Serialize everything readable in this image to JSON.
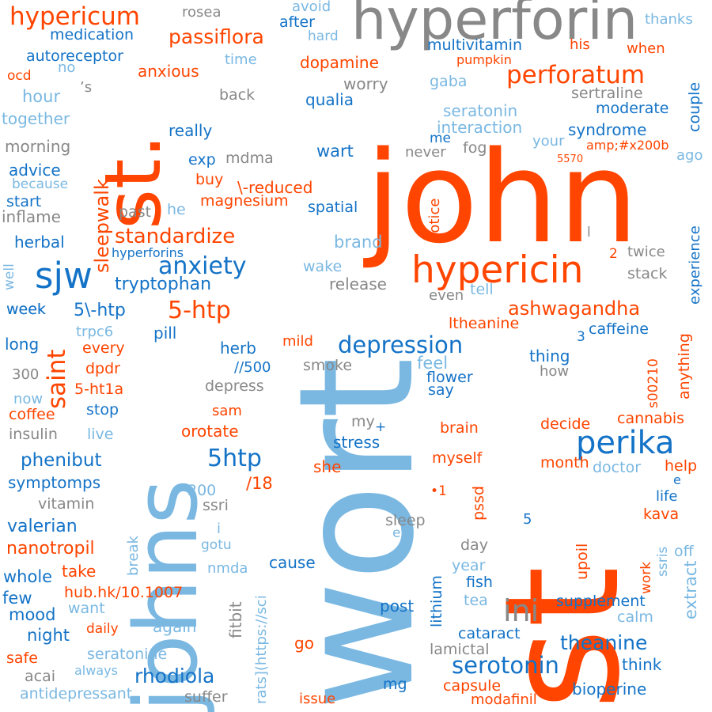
{
  "palette": {
    "orange": "#ff4500",
    "light_blue": "#7ab8e2",
    "gray": "#888888",
    "blue": "#1473c7"
  },
  "words": [
    {
      "text": "wort",
      "color": "light_blue",
      "orientation": "vertical"
    },
    {
      "text": "st",
      "color": "orange",
      "orientation": "vertical"
    },
    {
      "text": "john",
      "color": "orange",
      "orientation": "horizontal"
    },
    {
      "text": "johns",
      "color": "light_blue",
      "orientation": "vertical"
    },
    {
      "text": "st.",
      "color": "orange",
      "orientation": "vertical"
    },
    {
      "text": "hyperforin",
      "color": "gray",
      "orientation": "horizontal"
    },
    {
      "text": "hypericin",
      "color": "orange",
      "orientation": "horizontal"
    },
    {
      "text": "sjw",
      "color": "blue",
      "orientation": "horizontal"
    },
    {
      "text": "perika",
      "color": "blue",
      "orientation": "horizontal"
    },
    {
      "text": "ini",
      "color": "gray",
      "orientation": "horizontal"
    },
    {
      "text": "hypericum",
      "color": "orange",
      "orientation": "horizontal"
    },
    {
      "text": "perforatum",
      "color": "orange",
      "orientation": "horizontal"
    },
    {
      "text": "saint",
      "color": "orange",
      "orientation": "vertical"
    },
    {
      "text": "5-htp",
      "color": "orange",
      "orientation": "horizontal"
    },
    {
      "text": "5htp",
      "color": "blue",
      "orientation": "horizontal"
    },
    {
      "text": "anxiety",
      "color": "blue",
      "orientation": "horizontal"
    },
    {
      "text": "depression",
      "color": "blue",
      "orientation": "horizontal"
    },
    {
      "text": "serotonin",
      "color": "blue",
      "orientation": "horizontal"
    },
    {
      "text": "standardize",
      "color": "orange",
      "orientation": "horizontal"
    },
    {
      "text": "ashwagandha",
      "color": "orange",
      "orientation": "horizontal"
    },
    {
      "text": "rhodiola",
      "color": "blue",
      "orientation": "horizontal"
    },
    {
      "text": "theanine",
      "color": "blue",
      "orientation": "horizontal"
    },
    {
      "text": "passiflora",
      "color": "orange",
      "orientation": "horizontal"
    },
    {
      "text": "sleepwalk",
      "color": "orange",
      "orientation": "vertical"
    },
    {
      "text": "tryptophan",
      "color": "blue",
      "orientation": "horizontal"
    },
    {
      "text": "5\\-htp",
      "color": "blue",
      "orientation": "horizontal"
    },
    {
      "text": "phenibut",
      "color": "blue",
      "orientation": "horizontal"
    },
    {
      "text": "nanotropil",
      "color": "orange",
      "orientation": "horizontal"
    },
    {
      "text": "valerian",
      "color": "blue",
      "orientation": "horizontal"
    },
    {
      "text": "symptomps",
      "color": "blue",
      "orientation": "horizontal"
    },
    {
      "text": "medication",
      "color": "blue",
      "orientation": "horizontal"
    },
    {
      "text": "autoreceptor",
      "color": "blue",
      "orientation": "horizontal"
    },
    {
      "text": "anxious",
      "color": "orange",
      "orientation": "horizontal"
    },
    {
      "text": "dopamine",
      "color": "orange",
      "orientation": "horizontal"
    },
    {
      "text": "multivitamin",
      "color": "blue",
      "orientation": "horizontal"
    },
    {
      "text": "seratonin",
      "color": "light_blue",
      "orientation": "horizontal"
    },
    {
      "text": "interaction",
      "color": "light_blue",
      "orientation": "horizontal"
    },
    {
      "text": "syndrome",
      "color": "blue",
      "orientation": "horizontal"
    },
    {
      "text": "moderate",
      "color": "blue",
      "orientation": "horizontal"
    },
    {
      "text": "sertraline",
      "color": "gray",
      "orientation": "horizontal"
    },
    {
      "text": "couple",
      "color": "blue",
      "orientation": "vertical"
    },
    {
      "text": "qualia",
      "color": "blue",
      "orientation": "horizontal"
    },
    {
      "text": "worry",
      "color": "gray",
      "orientation": "horizontal"
    },
    {
      "text": "gaba",
      "color": "light_blue",
      "orientation": "horizontal"
    },
    {
      "text": "pumpkin",
      "color": "orange",
      "orientation": "horizontal"
    },
    {
      "text": "when",
      "color": "orange",
      "orientation": "horizontal"
    },
    {
      "text": "his",
      "color": "orange",
      "orientation": "horizontal"
    },
    {
      "text": "thanks",
      "color": "light_blue",
      "orientation": "horizontal"
    },
    {
      "text": "after",
      "color": "blue",
      "orientation": "horizontal"
    },
    {
      "text": "avoid",
      "color": "light_blue",
      "orientation": "horizontal"
    },
    {
      "text": "hard",
      "color": "light_blue",
      "orientation": "horizontal"
    },
    {
      "text": "rosea",
      "color": "gray",
      "orientation": "horizontal"
    },
    {
      "text": "time",
      "color": "light_blue",
      "orientation": "horizontal"
    },
    {
      "text": "back",
      "color": "gray",
      "orientation": "horizontal"
    },
    {
      "text": "no",
      "color": "light_blue",
      "orientation": "horizontal"
    },
    {
      "text": "’s",
      "color": "gray",
      "orientation": "horizontal"
    },
    {
      "text": "ocd",
      "color": "orange",
      "orientation": "horizontal"
    },
    {
      "text": "hour",
      "color": "light_blue",
      "orientation": "horizontal"
    },
    {
      "text": "together",
      "color": "light_blue",
      "orientation": "horizontal"
    },
    {
      "text": "morning",
      "color": "gray",
      "orientation": "horizontal"
    },
    {
      "text": "advice",
      "color": "blue",
      "orientation": "horizontal"
    },
    {
      "text": "because",
      "color": "light_blue",
      "orientation": "horizontal"
    },
    {
      "text": "start",
      "color": "blue",
      "orientation": "horizontal"
    },
    {
      "text": "inflame",
      "color": "gray",
      "orientation": "horizontal"
    },
    {
      "text": "herbal",
      "color": "blue",
      "orientation": "horizontal"
    },
    {
      "text": "well",
      "color": "light_blue",
      "orientation": "vertical"
    },
    {
      "text": "week",
      "color": "blue",
      "orientation": "horizontal"
    },
    {
      "text": "long",
      "color": "blue",
      "orientation": "horizontal"
    },
    {
      "text": "300",
      "color": "gray",
      "orientation": "horizontal"
    },
    {
      "text": "now",
      "color": "light_blue",
      "orientation": "horizontal"
    },
    {
      "text": "coffee",
      "color": "orange",
      "orientation": "horizontal"
    },
    {
      "text": "insulin",
      "color": "gray",
      "orientation": "horizontal"
    },
    {
      "text": "live",
      "color": "light_blue",
      "orientation": "horizontal"
    },
    {
      "text": "vitamin",
      "color": "gray",
      "orientation": "horizontal"
    },
    {
      "text": "whole",
      "color": "blue",
      "orientation": "horizontal"
    },
    {
      "text": "few",
      "color": "blue",
      "orientation": "horizontal"
    },
    {
      "text": "mood",
      "color": "blue",
      "orientation": "horizontal"
    },
    {
      "text": "night",
      "color": "blue",
      "orientation": "horizontal"
    },
    {
      "text": "safe",
      "color": "orange",
      "orientation": "horizontal"
    },
    {
      "text": "acai",
      "color": "gray",
      "orientation": "horizontal"
    },
    {
      "text": "antidepressant",
      "color": "light_blue",
      "orientation": "horizontal"
    },
    {
      "text": "suffer",
      "color": "gray",
      "orientation": "horizontal"
    },
    {
      "text": "always",
      "color": "light_blue",
      "orientation": "horizontal"
    },
    {
      "text": "seratonine",
      "color": "light_blue",
      "orientation": "horizontal"
    },
    {
      "text": "again",
      "color": "light_blue",
      "orientation": "horizontal"
    },
    {
      "text": "daily",
      "color": "orange",
      "orientation": "horizontal"
    },
    {
      "text": "want",
      "color": "light_blue",
      "orientation": "horizontal"
    },
    {
      "text": "fitbit",
      "color": "gray",
      "orientation": "vertical"
    },
    {
      "text": "hub.hk/10.1007",
      "color": "orange",
      "orientation": "horizontal"
    },
    {
      "text": "take",
      "color": "orange",
      "orientation": "horizontal"
    },
    {
      "text": "break",
      "color": "light_blue",
      "orientation": "vertical"
    },
    {
      "text": "nmda",
      "color": "light_blue",
      "orientation": "horizontal"
    },
    {
      "text": "gotu",
      "color": "light_blue",
      "orientation": "horizontal"
    },
    {
      "text": "i",
      "color": "light_blue",
      "orientation": "horizontal"
    },
    {
      "text": "ssri",
      "color": "gray",
      "orientation": "horizontal"
    },
    {
      "text": "200",
      "color": "light_blue",
      "orientation": "horizontal"
    },
    {
      "text": "/18",
      "color": "orange",
      "orientation": "horizontal"
    },
    {
      "text": "cause",
      "color": "blue",
      "orientation": "horizontal"
    },
    {
      "text": "rats](https://sci",
      "color": "light_blue",
      "orientation": "vertical"
    },
    {
      "text": "etc",
      "color": "light_blue",
      "orientation": "horizontal"
    },
    {
      "text": "sleep",
      "color": "gray",
      "orientation": "horizontal"
    },
    {
      "text": "lithium",
      "color": "blue",
      "orientation": "vertical"
    },
    {
      "text": "post",
      "color": "blue",
      "orientation": "horizontal"
    },
    {
      "text": "go",
      "color": "orange",
      "orientation": "horizontal"
    },
    {
      "text": "mg",
      "color": "blue",
      "orientation": "horizontal"
    },
    {
      "text": "issue",
      "color": "orange",
      "orientation": "horizontal"
    },
    {
      "text": "lamictal",
      "color": "gray",
      "orientation": "horizontal"
    },
    {
      "text": "capsule",
      "color": "orange",
      "orientation": "horizontal"
    },
    {
      "text": "modafinil",
      "color": "orange",
      "orientation": "horizontal"
    },
    {
      "text": "bioperine",
      "color": "blue",
      "orientation": "horizontal"
    },
    {
      "text": "think",
      "color": "blue",
      "orientation": "horizontal"
    },
    {
      "text": "cataract",
      "color": "blue",
      "orientation": "horizontal"
    },
    {
      "text": "tea",
      "color": "light_blue",
      "orientation": "horizontal"
    },
    {
      "text": "fish",
      "color": "blue",
      "orientation": "horizontal"
    },
    {
      "text": "year",
      "color": "light_blue",
      "orientation": "horizontal"
    },
    {
      "text": "day",
      "color": "gray",
      "orientation": "horizontal"
    },
    {
      "text": "upoil",
      "color": "orange",
      "orientation": "vertical"
    },
    {
      "text": "supplement",
      "color": "blue",
      "orientation": "horizontal"
    },
    {
      "text": "calm",
      "color": "light_blue",
      "orientation": "horizontal"
    },
    {
      "text": "extract",
      "color": "light_blue",
      "orientation": "vertical"
    },
    {
      "text": "work",
      "color": "orange",
      "orientation": "vertical"
    },
    {
      "text": "ssris",
      "color": "light_blue",
      "orientation": "vertical"
    },
    {
      "text": "off",
      "color": "light_blue",
      "orientation": "horizontal"
    },
    {
      "text": "kava",
      "color": "orange",
      "orientation": "horizontal"
    },
    {
      "text": "life",
      "color": "blue",
      "orientation": "horizontal"
    },
    {
      "text": "e",
      "color": "blue",
      "orientation": "horizontal"
    },
    {
      "text": "help",
      "color": "orange",
      "orientation": "horizontal"
    },
    {
      "text": "doctor",
      "color": "light_blue",
      "orientation": "horizontal"
    },
    {
      "text": "month",
      "color": "orange",
      "orientation": "horizontal"
    },
    {
      "text": "myself",
      "color": "orange",
      "orientation": "horizontal"
    },
    {
      "text": "pssd",
      "color": "orange",
      "orientation": "vertical"
    },
    {
      "text": "•1",
      "color": "orange",
      "orientation": "horizontal"
    },
    {
      "text": "5",
      "color": "blue",
      "orientation": "horizontal"
    },
    {
      "text": "brain",
      "color": "orange",
      "orientation": "horizontal"
    },
    {
      "text": "decide",
      "color": "orange",
      "orientation": "horizontal"
    },
    {
      "text": "cannabis",
      "color": "orange",
      "orientation": "horizontal"
    },
    {
      "text": "s00210",
      "color": "orange",
      "orientation": "vertical"
    },
    {
      "text": "anything",
      "color": "orange",
      "orientation": "vertical"
    },
    {
      "text": "say",
      "color": "blue",
      "orientation": "horizontal"
    },
    {
      "text": "flower",
      "color": "blue",
      "orientation": "horizontal"
    },
    {
      "text": "feel",
      "color": "light_blue",
      "orientation": "horizontal"
    },
    {
      "text": "how",
      "color": "gray",
      "orientation": "horizontal"
    },
    {
      "text": "thing",
      "color": "blue",
      "orientation": "horizontal"
    },
    {
      "text": "3",
      "color": "blue",
      "orientation": "horizontal"
    },
    {
      "text": "caffeine",
      "color": "blue",
      "orientation": "horizontal"
    },
    {
      "text": "ltheanine",
      "color": "orange",
      "orientation": "horizontal"
    },
    {
      "text": "tell",
      "color": "light_blue",
      "orientation": "horizontal"
    },
    {
      "text": "even",
      "color": "gray",
      "orientation": "horizontal"
    },
    {
      "text": "release",
      "color": "gray",
      "orientation": "horizontal"
    },
    {
      "text": "wake",
      "color": "light_blue",
      "orientation": "horizontal"
    },
    {
      "text": "brand",
      "color": "light_blue",
      "orientation": "horizontal"
    },
    {
      "text": "l",
      "color": "gray",
      "orientation": "horizontal"
    },
    {
      "text": "2",
      "color": "orange",
      "orientation": "horizontal"
    },
    {
      "text": "twice",
      "color": "gray",
      "orientation": "horizontal"
    },
    {
      "text": "stack",
      "color": "gray",
      "orientation": "horizontal"
    },
    {
      "text": "experience",
      "color": "blue",
      "orientation": "vertical"
    },
    {
      "text": "notice",
      "color": "orange",
      "orientation": "vertical"
    },
    {
      "text": "spatial",
      "color": "blue",
      "orientation": "horizontal"
    },
    {
      "text": "magnesium",
      "color": "orange",
      "orientation": "horizontal"
    },
    {
      "text": "\\-reduced",
      "color": "orange",
      "orientation": "horizontal"
    },
    {
      "text": "buy",
      "color": "orange",
      "orientation": "horizontal"
    },
    {
      "text": "exp",
      "color": "blue",
      "orientation": "horizontal"
    },
    {
      "text": "mdma",
      "color": "gray",
      "orientation": "horizontal"
    },
    {
      "text": "wart",
      "color": "blue",
      "orientation": "horizontal"
    },
    {
      "text": "me",
      "color": "blue",
      "orientation": "horizontal"
    },
    {
      "text": "never",
      "color": "gray",
      "orientation": "horizontal"
    },
    {
      "text": "fog",
      "color": "gray",
      "orientation": "horizontal"
    },
    {
      "text": "your",
      "color": "light_blue",
      "orientation": "horizontal"
    },
    {
      "text": "amp;#x200b",
      "color": "orange",
      "orientation": "horizontal"
    },
    {
      "text": "5570",
      "color": "orange",
      "orientation": "horizontal"
    },
    {
      "text": "ago",
      "color": "light_blue",
      "orientation": "horizontal"
    },
    {
      "text": "really",
      "color": "blue",
      "orientation": "horizontal"
    },
    {
      "text": "past",
      "color": "gray",
      "orientation": "horizontal"
    },
    {
      "text": "he",
      "color": "light_blue",
      "orientation": "horizontal"
    },
    {
      "text": "hyperforins",
      "color": "blue",
      "orientation": "horizontal"
    },
    {
      "text": "week",
      "color": "blue",
      "orientation": "horizontal"
    },
    {
      "text": "trpc6",
      "color": "light_blue",
      "orientation": "horizontal"
    },
    {
      "text": "every",
      "color": "orange",
      "orientation": "horizontal"
    },
    {
      "text": "dpdr",
      "color": "orange",
      "orientation": "horizontal"
    },
    {
      "text": "5-ht1a",
      "color": "orange",
      "orientation": "horizontal"
    },
    {
      "text": "stop",
      "color": "blue",
      "orientation": "horizontal"
    },
    {
      "text": "pill",
      "color": "blue",
      "orientation": "horizontal"
    },
    {
      "text": "herb",
      "color": "blue",
      "orientation": "horizontal"
    },
    {
      "text": "//500",
      "color": "blue",
      "orientation": "horizontal"
    },
    {
      "text": "mild",
      "color": "orange",
      "orientation": "horizontal"
    },
    {
      "text": "smoke",
      "color": "gray",
      "orientation": "horizontal"
    },
    {
      "text": "depress",
      "color": "gray",
      "orientation": "horizontal"
    },
    {
      "text": "sam",
      "color": "orange",
      "orientation": "horizontal"
    },
    {
      "text": "orotate",
      "color": "orange",
      "orientation": "horizontal"
    },
    {
      "text": "my",
      "color": "gray",
      "orientation": "horizontal"
    },
    {
      "text": "+",
      "color": "blue",
      "orientation": "horizontal"
    },
    {
      "text": "stress",
      "color": "blue",
      "orientation": "horizontal"
    },
    {
      "text": "she",
      "color": "orange",
      "orientation": "horizontal"
    }
  ]
}
